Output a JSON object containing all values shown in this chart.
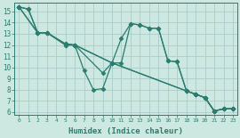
{
  "title": "",
  "xlabel": "Humidex (Indice chaleur)",
  "ylabel": "",
  "xlim": [
    -0.5,
    23.5
  ],
  "ylim": [
    5.8,
    15.8
  ],
  "bg_color": "#cce8e0",
  "grid_color": "#aacccc",
  "line_color": "#2a7d6f",
  "series": [
    {
      "x": [
        0,
        1,
        2,
        3,
        5,
        6,
        7,
        8,
        9,
        10,
        11,
        12,
        13,
        14,
        15,
        16,
        17,
        18,
        19,
        20,
        21,
        22,
        23
      ],
      "y": [
        15.4,
        15.2,
        13.1,
        13.1,
        12.1,
        12.0,
        9.7,
        8.0,
        8.1,
        10.4,
        12.6,
        13.9,
        13.8,
        13.5,
        13.5,
        10.6,
        10.5,
        7.9,
        7.6,
        7.3,
        6.1,
        6.3,
        6.3
      ]
    },
    {
      "x": [
        0,
        2,
        3,
        5,
        6,
        10,
        18,
        19,
        20,
        21,
        22,
        23
      ],
      "y": [
        15.4,
        13.1,
        13.1,
        12.0,
        12.0,
        10.4,
        7.9,
        7.6,
        7.3,
        6.1,
        6.3,
        6.3
      ]
    },
    {
      "x": [
        0,
        2,
        3,
        5,
        6,
        10,
        18,
        19,
        20,
        21,
        22,
        23
      ],
      "y": [
        15.4,
        13.1,
        13.1,
        12.1,
        12.0,
        10.4,
        7.9,
        7.6,
        7.3,
        6.1,
        6.3,
        6.3
      ]
    },
    {
      "x": [
        0,
        1,
        2,
        3,
        5,
        6,
        9,
        10,
        11,
        12,
        13,
        14,
        15,
        16,
        17,
        18,
        19,
        20,
        21,
        22,
        23
      ],
      "y": [
        15.4,
        15.2,
        13.1,
        13.1,
        12.0,
        12.0,
        9.5,
        10.4,
        10.4,
        13.9,
        13.8,
        13.5,
        13.5,
        10.6,
        10.5,
        7.9,
        7.6,
        7.3,
        6.1,
        6.3,
        6.3
      ]
    }
  ],
  "xticks": [
    0,
    1,
    2,
    3,
    4,
    5,
    6,
    7,
    8,
    9,
    10,
    11,
    12,
    13,
    14,
    15,
    16,
    17,
    18,
    19,
    20,
    21,
    22,
    23
  ],
  "yticks": [
    6,
    7,
    8,
    9,
    10,
    11,
    12,
    13,
    14,
    15
  ],
  "marker": "D",
  "markersize": 2.5,
  "linewidth": 0.9
}
